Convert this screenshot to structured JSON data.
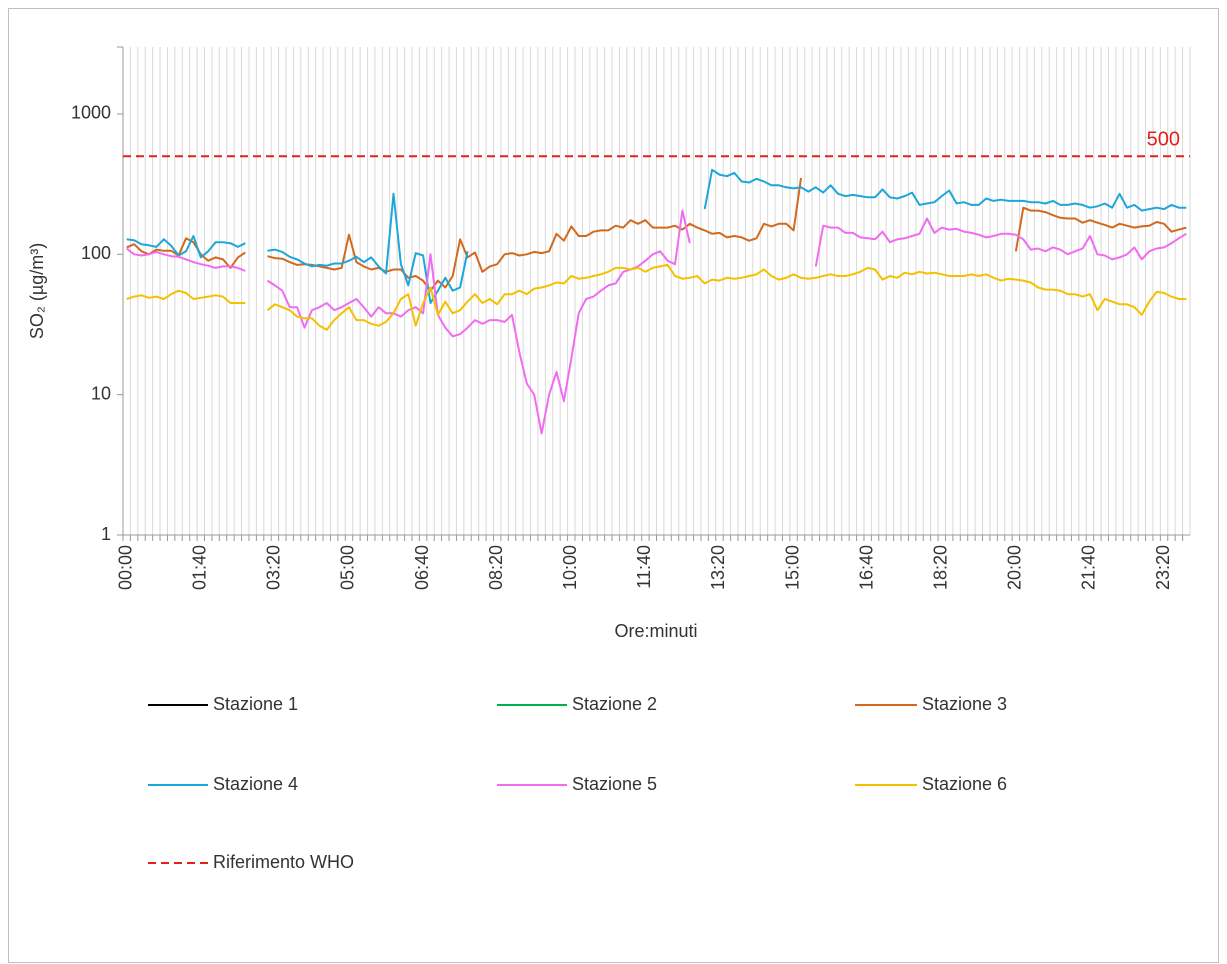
{
  "chart_data": {
    "type": "line",
    "y_label": "SO₂ (µg/m³)",
    "x_label": "Ore:minuti",
    "log_scale": true,
    "ylim": [
      1,
      3000
    ],
    "yticks": [
      1,
      10,
      100,
      1000
    ],
    "xgrid": true,
    "categories": [
      "00:00",
      null,
      null,
      null,
      null,
      null,
      null,
      null,
      null,
      null,
      "01:40",
      null,
      null,
      null,
      null,
      null,
      null,
      null,
      null,
      null,
      "03:20",
      null,
      null,
      null,
      null,
      null,
      null,
      null,
      null,
      null,
      "05:00",
      null,
      null,
      null,
      null,
      null,
      null,
      null,
      null,
      null,
      "06:40",
      null,
      null,
      null,
      null,
      null,
      null,
      null,
      null,
      null,
      "08:20",
      null,
      null,
      null,
      null,
      null,
      null,
      null,
      null,
      null,
      "10:00",
      null,
      null,
      null,
      null,
      null,
      null,
      null,
      null,
      null,
      "11:40",
      null,
      null,
      null,
      null,
      null,
      null,
      null,
      null,
      null,
      "13:20",
      null,
      null,
      null,
      null,
      null,
      null,
      null,
      null,
      null,
      "15:00",
      null,
      null,
      null,
      null,
      null,
      null,
      null,
      null,
      null,
      "16:40",
      null,
      null,
      null,
      null,
      null,
      null,
      null,
      null,
      null,
      "18:20",
      null,
      null,
      null,
      null,
      null,
      null,
      null,
      null,
      null,
      "20:00",
      null,
      null,
      null,
      null,
      null,
      null,
      null,
      null,
      null,
      "21:40",
      null,
      null,
      null,
      null,
      null,
      null,
      null,
      null,
      null,
      "23:20",
      null,
      null,
      null
    ],
    "series": [
      {
        "name": "Stazione 1",
        "color": "#000000",
        "values": [
          null,
          null,
          null,
          null,
          null,
          null,
          null,
          null,
          null,
          null,
          null,
          null,
          null,
          null,
          null,
          null,
          null,
          null,
          null,
          null,
          null,
          null,
          null,
          null,
          null,
          null,
          null,
          null,
          null,
          null,
          null,
          null,
          null,
          null,
          null,
          null,
          null,
          null,
          null,
          null,
          null,
          null,
          null,
          null,
          null,
          null,
          null,
          null,
          null,
          null,
          null,
          null,
          null,
          null,
          null,
          null,
          null,
          null,
          null,
          null,
          null,
          null,
          null,
          null,
          null,
          null,
          null,
          null,
          null,
          null,
          null,
          null,
          null,
          null,
          null,
          null,
          null,
          null,
          null,
          null,
          null,
          null,
          null,
          null,
          null,
          null,
          null,
          null,
          null,
          null,
          null,
          null,
          null,
          null,
          null,
          null,
          null,
          null,
          null,
          null,
          null,
          null,
          null,
          null,
          null,
          null,
          null,
          null,
          null,
          null,
          null,
          null,
          null,
          null,
          null,
          null,
          null,
          null,
          null,
          null,
          null,
          null,
          null,
          null,
          null,
          null,
          null,
          null,
          null,
          null,
          null,
          null,
          null,
          null,
          null,
          null,
          null,
          null,
          null,
          null,
          null,
          null,
          null,
          null
        ]
      },
      {
        "name": "Stazione 2",
        "color": "#00b050",
        "values": [
          null,
          null,
          null,
          null,
          null,
          null,
          null,
          null,
          null,
          null,
          null,
          null,
          null,
          null,
          null,
          null,
          null,
          null,
          null,
          null,
          null,
          null,
          null,
          null,
          null,
          null,
          null,
          null,
          null,
          null,
          null,
          null,
          null,
          null,
          null,
          null,
          null,
          null,
          null,
          null,
          null,
          null,
          null,
          null,
          null,
          null,
          null,
          null,
          null,
          null,
          null,
          null,
          null,
          null,
          null,
          null,
          null,
          null,
          null,
          null,
          null,
          null,
          null,
          null,
          null,
          null,
          null,
          null,
          null,
          null,
          null,
          null,
          null,
          null,
          null,
          null,
          null,
          null,
          null,
          null,
          null,
          null,
          null,
          null,
          null,
          null,
          null,
          null,
          null,
          null,
          null,
          null,
          null,
          null,
          null,
          null,
          null,
          null,
          null,
          null,
          null,
          null,
          null,
          null,
          null,
          null,
          null,
          null,
          null,
          null,
          null,
          null,
          null,
          null,
          null,
          null,
          null,
          null,
          null,
          null,
          null,
          null,
          null,
          null,
          null,
          null,
          null,
          null,
          null,
          null,
          null,
          null,
          null,
          null,
          null,
          null,
          null,
          null,
          null,
          null,
          null,
          null,
          null,
          null
        ]
      },
      {
        "name": "Stazione 3",
        "color": "#d2691e",
        "values": [
          112,
          118,
          105,
          100,
          108,
          106,
          106,
          98,
          130,
          122,
          100,
          90,
          95,
          92,
          80,
          95,
          103,
          null,
          null,
          97,
          94,
          93,
          88,
          84,
          85,
          84,
          82,
          80,
          78,
          80,
          138,
          88,
          82,
          78,
          80,
          75,
          78,
          78,
          68,
          70,
          65,
          55,
          65,
          58,
          70,
          128,
          95,
          103,
          75,
          82,
          85,
          100,
          102,
          98,
          100,
          104,
          102,
          105,
          140,
          125,
          158,
          135,
          135,
          145,
          148,
          148,
          160,
          155,
          175,
          165,
          175,
          155,
          155,
          155,
          160,
          150,
          165,
          155,
          148,
          140,
          142,
          132,
          135,
          132,
          125,
          130,
          165,
          158,
          165,
          165,
          148,
          350,
          null,
          null,
          null,
          null,
          null,
          null,
          null,
          null,
          null,
          null,
          null,
          null,
          null,
          null,
          null,
          null,
          null,
          null,
          null,
          null,
          null,
          null,
          null,
          null,
          null,
          null,
          null,
          null,
          105,
          215,
          205,
          205,
          200,
          190,
          182,
          180,
          180,
          168,
          175,
          168,
          162,
          155,
          165,
          160,
          155,
          158,
          160,
          170,
          165,
          145,
          150,
          155
        ]
      },
      {
        "name": "Stazione 4",
        "color": "#1ca7d8",
        "values": [
          128,
          126,
          118,
          116,
          113,
          128,
          115,
          98,
          105,
          135,
          95,
          105,
          122,
          122,
          120,
          113,
          120,
          null,
          null,
          106,
          108,
          104,
          96,
          92,
          86,
          82,
          84,
          83,
          86,
          86,
          90,
          96,
          88,
          95,
          82,
          73,
          270,
          85,
          60,
          102,
          98,
          45,
          55,
          68,
          55,
          58,
          105,
          null,
          null,
          null,
          null,
          null,
          null,
          null,
          null,
          null,
          null,
          null,
          null,
          null,
          null,
          null,
          null,
          null,
          null,
          null,
          null,
          null,
          null,
          null,
          null,
          null,
          null,
          null,
          null,
          null,
          null,
          null,
          210,
          400,
          370,
          360,
          380,
          330,
          325,
          345,
          330,
          310,
          310,
          300,
          295,
          300,
          280,
          300,
          275,
          310,
          270,
          260,
          265,
          260,
          255,
          255,
          290,
          255,
          250,
          260,
          275,
          225,
          230,
          235,
          260,
          285,
          230,
          235,
          225,
          225,
          250,
          240,
          245,
          240,
          240,
          240,
          235,
          235,
          230,
          240,
          225,
          225,
          230,
          225,
          215,
          220,
          230,
          215,
          270,
          215,
          225,
          205,
          210,
          215,
          210,
          225,
          215,
          215
        ]
      },
      {
        "name": "Stazione 5",
        "color": "#f06cf0",
        "values": [
          110,
          100,
          98,
          100,
          104,
          100,
          97,
          96,
          92,
          88,
          85,
          83,
          80,
          82,
          82,
          80,
          76,
          null,
          null,
          65,
          60,
          55,
          42,
          42,
          30,
          40,
          42,
          45,
          40,
          42,
          45,
          48,
          42,
          36,
          42,
          38,
          38,
          36,
          40,
          42,
          38,
          100,
          37,
          30,
          26,
          27,
          30,
          34,
          32,
          34,
          34,
          33,
          37,
          20,
          12,
          10,
          5.3,
          10,
          14.5,
          9,
          18,
          38,
          48,
          50,
          55,
          60,
          62,
          75,
          78,
          82,
          90,
          100,
          105,
          90,
          85,
          205,
          120,
          null,
          null,
          null,
          null,
          null,
          null,
          null,
          null,
          null,
          null,
          null,
          null,
          null,
          null,
          null,
          null,
          82,
          160,
          155,
          155,
          142,
          142,
          132,
          130,
          128,
          145,
          122,
          128,
          130,
          135,
          140,
          180,
          142,
          155,
          150,
          152,
          145,
          142,
          138,
          132,
          135,
          140,
          140,
          138,
          128,
          108,
          110,
          105,
          112,
          108,
          100,
          105,
          110,
          135,
          100,
          98,
          92,
          95,
          100,
          112,
          92,
          105,
          110,
          112,
          120,
          130,
          140
        ]
      },
      {
        "name": "Stazione 6",
        "color": "#f5c000",
        "values": [
          48,
          50,
          51,
          49,
          50,
          48,
          52,
          55,
          53,
          48,
          49,
          50,
          51,
          50,
          45,
          45,
          45,
          null,
          null,
          40,
          44,
          42,
          40,
          36,
          35,
          35,
          31,
          29,
          34,
          38,
          42,
          34,
          34,
          32,
          31,
          33,
          38,
          48,
          52,
          31,
          45,
          58,
          37,
          46,
          38,
          40,
          46,
          52,
          45,
          48,
          44,
          52,
          52,
          55,
          52,
          57,
          58,
          60,
          63,
          62,
          70,
          67,
          68,
          70,
          72,
          75,
          80,
          80,
          78,
          80,
          75,
          80,
          82,
          84,
          70,
          67,
          68,
          70,
          62,
          66,
          65,
          68,
          67,
          68,
          70,
          72,
          78,
          70,
          66,
          68,
          72,
          68,
          67,
          68,
          70,
          72,
          70,
          70,
          72,
          75,
          80,
          78,
          66,
          70,
          68,
          74,
          72,
          75,
          73,
          74,
          72,
          70,
          70,
          70,
          72,
          70,
          72,
          68,
          65,
          67,
          66,
          65,
          63,
          58,
          56,
          56,
          55,
          52,
          52,
          50,
          52,
          40,
          48,
          46,
          44,
          44,
          42,
          37,
          46,
          54,
          53,
          50,
          48,
          48
        ]
      }
    ],
    "reference": {
      "name": "Riferimento WHO",
      "value": 500,
      "color": "#e3201b"
    }
  }
}
